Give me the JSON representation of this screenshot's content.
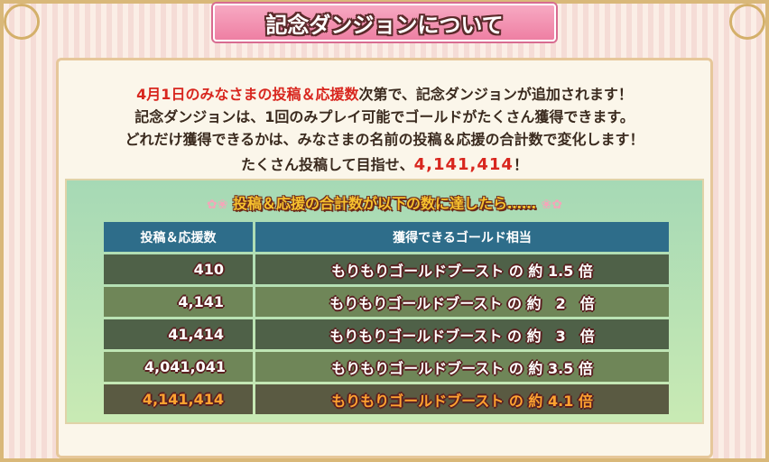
{
  "title": "記念ダンジョンについて",
  "intro": {
    "line1_red": "4月1日のみなさまの投稿＆応援数",
    "line1_rest": "次第で、記念ダンジョンが追加されます！",
    "line2": "記念ダンジョンは、1回のみプレイ可能でゴールドがたくさん獲得できます。",
    "line3": "どれだけ獲得できるかは、みなさまの名前の投稿＆応援の合計数で変化します！",
    "line4_pre": "たくさん投稿して目指せ、",
    "line4_target": "4,141,414",
    "line4_post": "！"
  },
  "subtitle": "投稿＆応援の合計数が以下の数に達したら……",
  "table": {
    "headers": [
      "投稿＆応援数",
      "獲得できるゴールド相当"
    ],
    "rows": [
      {
        "count": "410",
        "reward": "もりもりゴールドブースト の 約 1.5 倍"
      },
      {
        "count": "4,141",
        "reward": "もりもりゴールドブースト の 約　2　倍"
      },
      {
        "count": "41,414",
        "reward": "もりもりゴールドブースト の 約　3　倍"
      },
      {
        "count": "4,041,041",
        "reward": "もりもりゴールドブースト の 約 3.5 倍"
      },
      {
        "count": "4,141,414",
        "reward": "もりもりゴールドブースト の 約 4.1 倍"
      }
    ]
  },
  "colors": {
    "accent_red": "#d8261e",
    "header_blue": "#2e6d8a",
    "highlight_orange": "#ffa230",
    "banner_pink": "#ee7fa3"
  }
}
